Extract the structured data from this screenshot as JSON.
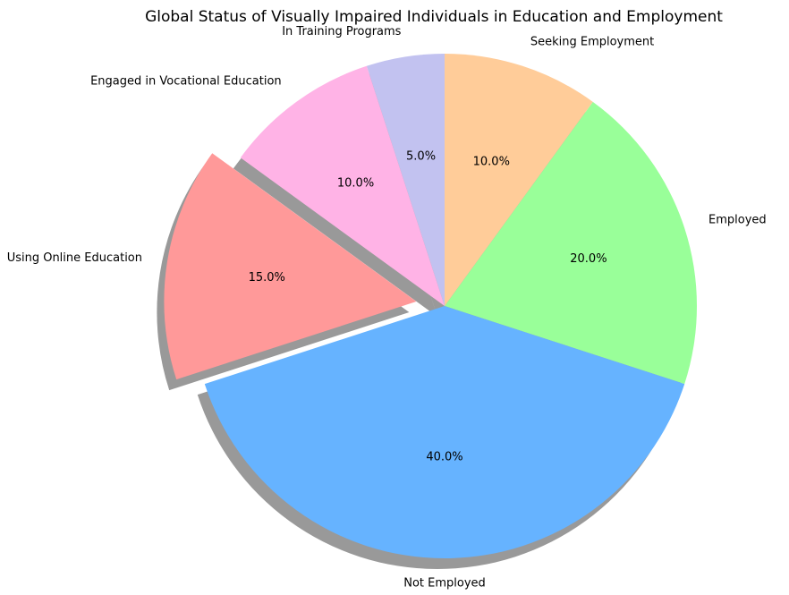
{
  "chart_data": {
    "type": "pie",
    "title": "Global Status of Visually Impaired Individuals in Education and Employment",
    "categories": [
      "Employed",
      "Seeking Employment",
      "In Training Programs",
      "Engaged in Vocational Education",
      "Using Online Education",
      "Not Employed"
    ],
    "values": [
      20,
      10,
      5,
      10,
      15,
      40
    ],
    "percent_labels": [
      "20.0%",
      "10.0%",
      "5.0%",
      "10.0%",
      "15.0%",
      "40.0%"
    ],
    "colors": [
      "#99ff99",
      "#ffcc99",
      "#c2c2f0",
      "#ffb3e6",
      "#ff9999",
      "#66b3ff"
    ],
    "exploded": "Using Online Education",
    "shadow": true,
    "start_angle_deg": -18,
    "direction": "counterclockwise"
  }
}
